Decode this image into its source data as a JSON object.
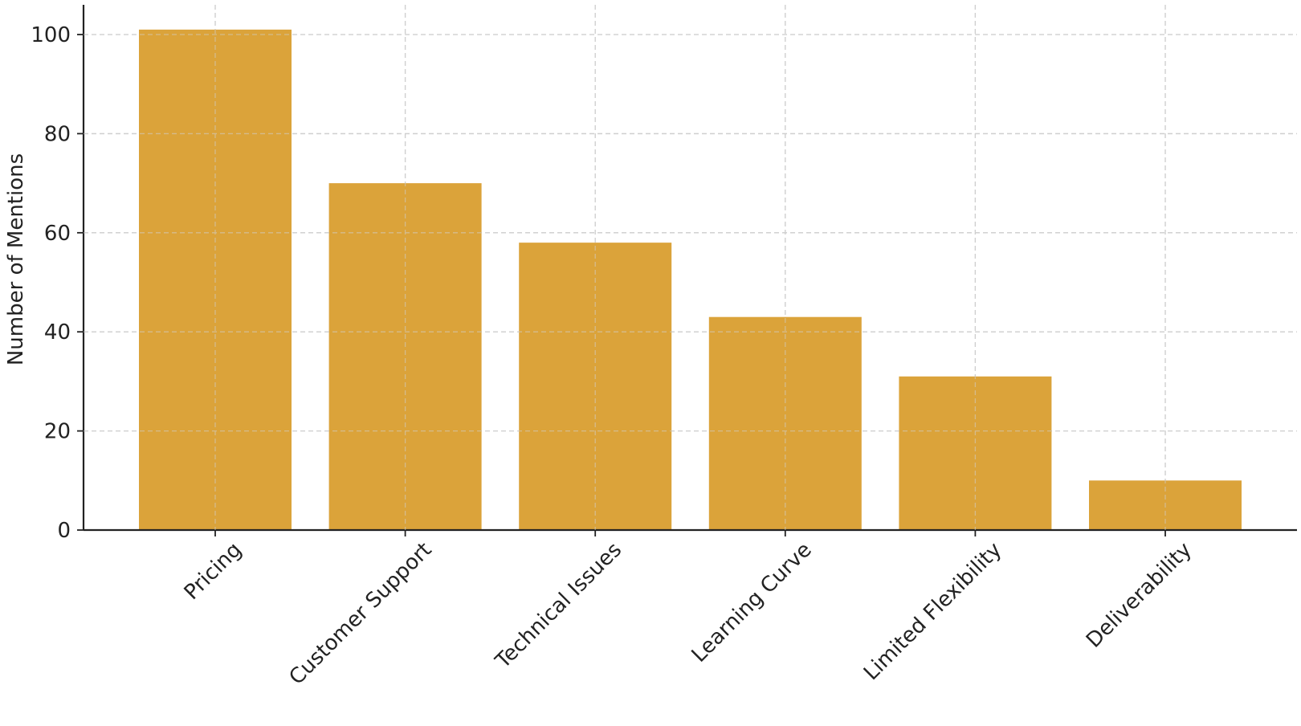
{
  "chart_data": {
    "type": "bar",
    "title": "",
    "xlabel": "",
    "ylabel": "Number of Mentions",
    "categories": [
      "Pricing",
      "Customer Support",
      "Technical Issues",
      "Learning Curve",
      "Limited Flexibility",
      "Deliverability"
    ],
    "values": [
      101,
      70,
      58,
      43,
      31,
      10
    ],
    "ylim": [
      0,
      106
    ],
    "yticks": [
      0,
      20,
      40,
      60,
      80,
      100
    ],
    "bar_color": "#DBA33A",
    "grid": true,
    "x_tick_rotation_deg": 45
  }
}
